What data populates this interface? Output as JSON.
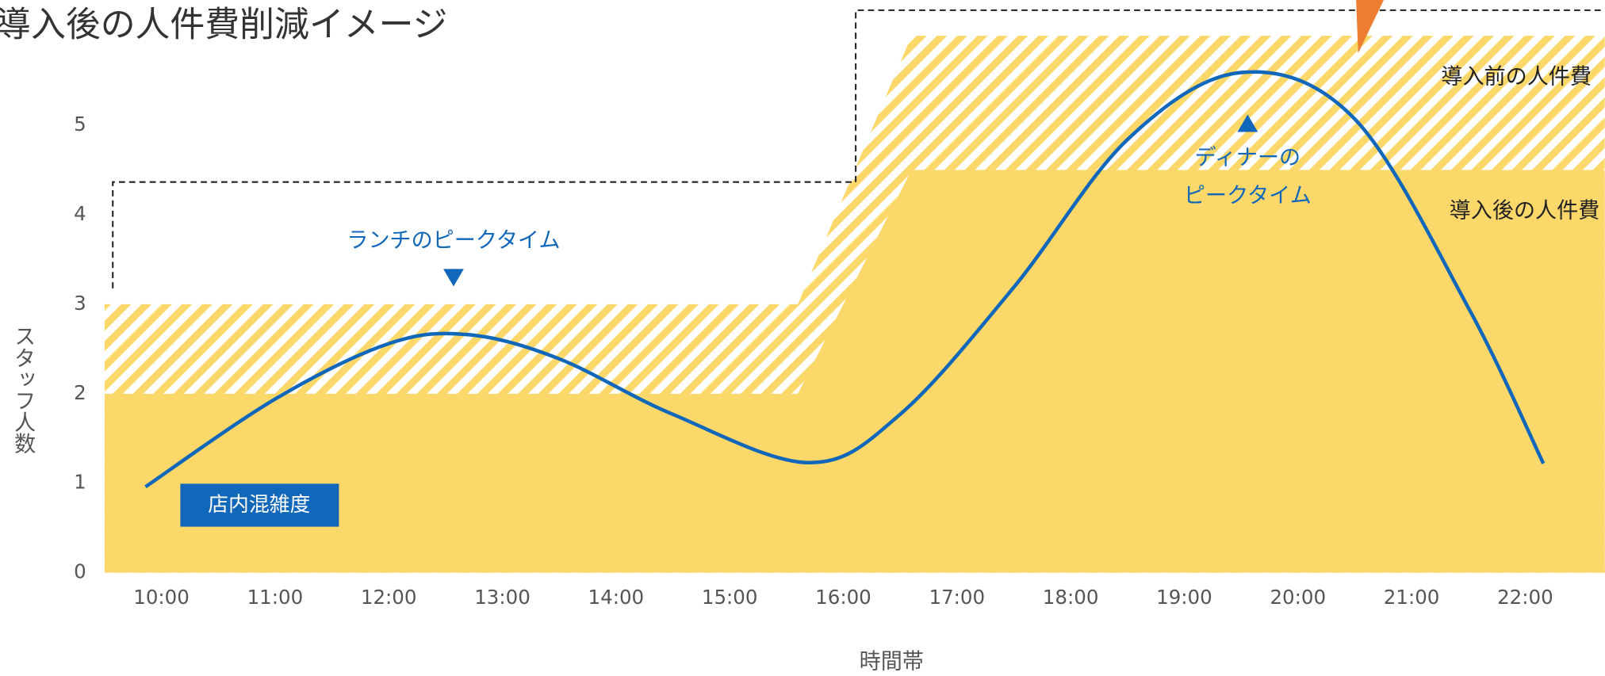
{
  "chart_data": {
    "type": "area",
    "title": "導入後の人件費削減イメージ",
    "xlabel": "時間帯",
    "ylabel": "スタッフ人数",
    "xlim": [
      9.5,
      22.7
    ],
    "xticks": [
      {
        "value": 10,
        "label": "10:00"
      },
      {
        "value": 11,
        "label": "11:00"
      },
      {
        "value": 12,
        "label": "12:00"
      },
      {
        "value": 13,
        "label": "13:00"
      },
      {
        "value": 14,
        "label": "14:00"
      },
      {
        "value": 15,
        "label": "15:00"
      },
      {
        "value": 16,
        "label": "16:00"
      },
      {
        "value": 17,
        "label": "17:00"
      },
      {
        "value": 18,
        "label": "18:00"
      },
      {
        "value": 19,
        "label": "19:00"
      },
      {
        "value": 20,
        "label": "20:00"
      },
      {
        "value": 21,
        "label": "21:00"
      },
      {
        "value": 22,
        "label": "22:00"
      }
    ],
    "ylim": [
      0,
      6.4
    ],
    "yticks": [
      0,
      1,
      2,
      3,
      4,
      5
    ],
    "series": [
      {
        "name": "導入前の人件費",
        "kind": "area",
        "pattern": "hatch",
        "color": "#fcd86a",
        "x": [
          9.5,
          15.6,
          16.6,
          22.7
        ],
        "values": [
          3,
          3,
          6,
          6
        ]
      },
      {
        "name": "導入後の人件費",
        "kind": "area",
        "pattern": "solid",
        "color": "#fcd86a",
        "x": [
          9.5,
          15.6,
          16.6,
          22.7
        ],
        "values": [
          2,
          2,
          4.5,
          4.5
        ]
      },
      {
        "name": "店内混雑度",
        "kind": "line",
        "color": "#1167b9",
        "x": [
          9.86,
          11,
          12,
          12.7,
          13.5,
          14.5,
          15.7,
          16.5,
          17.5,
          18.5,
          19.5,
          20.5,
          21.5,
          22.16
        ],
        "values": [
          0.96,
          1.94,
          2.56,
          2.66,
          2.39,
          1.77,
          1.23,
          1.77,
          3.19,
          4.84,
          5.59,
          5.07,
          2.96,
          1.22
        ]
      }
    ],
    "annotations": [
      "ランチのピークタイム",
      "ディナーの",
      "ピークタイム"
    ]
  }
}
